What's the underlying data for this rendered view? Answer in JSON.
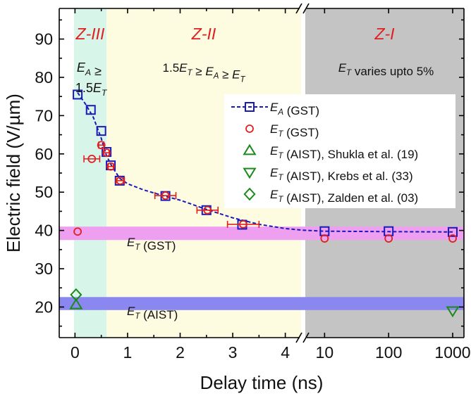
{
  "chart_data": {
    "type": "scatter",
    "xlabel": "Delay time (ns)",
    "ylabel": "Electric field (V/µm)",
    "ylim": [
      12,
      98
    ],
    "yticks": [
      "20",
      "30",
      "40",
      "50",
      "60",
      "70",
      "80",
      "90"
    ],
    "xaxis": {
      "linear_segment": {
        "range": [
          -0.3,
          4.3
        ],
        "ticks": [
          "0",
          "1",
          "2",
          "3",
          "4"
        ]
      },
      "log_segment": {
        "range": [
          5,
          1500
        ],
        "ticks": [
          "10",
          "100",
          "1000"
        ]
      }
    },
    "zones": [
      {
        "label": "Z-III",
        "from_ns": -0.02,
        "to_ns": 0.6,
        "color": "#d8f5ea",
        "condition_line1": "E_A ≥",
        "condition_line2": "1.5E_T"
      },
      {
        "label": "Z-II",
        "from_ns": 0.6,
        "to_ns": 4.3,
        "color": "#fdfbe0",
        "condition": "1.5E_T ≥ E_A ≥ E_T"
      },
      {
        "label": "Z-I",
        "from_ns": 5,
        "to_ns": 1500,
        "color": "#c4c4c4",
        "condition": "E_T varies upto 5%"
      }
    ],
    "bands": [
      {
        "label": "E_T (GST)",
        "y_from": 37.5,
        "y_to": 41,
        "color": "#ee9ff0"
      },
      {
        "label": "E_T (AIST)",
        "y_from": 19.2,
        "y_to": 22.6,
        "color": "#8a88f0"
      }
    ],
    "series": [
      {
        "name": "E_A (GST)",
        "marker": "square",
        "color": "#1a1ab8",
        "line": "dashed",
        "x": [
          0.05,
          0.3,
          0.5,
          0.6,
          0.68,
          0.85,
          1.72,
          2.5,
          3.18,
          10,
          100,
          1000
        ],
        "y": [
          75.5,
          71.5,
          66,
          60.5,
          57,
          53,
          49,
          45.3,
          41.5,
          39.8,
          39.8,
          39.6
        ]
      },
      {
        "name": "E_T (GST)",
        "marker": "circle",
        "color": "#e02020",
        "x": [
          0.05,
          0.32,
          0.5,
          0.6,
          0.68,
          0.86,
          1.72,
          2.52,
          3.2,
          10,
          100,
          1000
        ],
        "y": [
          39.7,
          58.7,
          62.3,
          60.3,
          56.7,
          53,
          49.1,
          45.3,
          41.6,
          37.9,
          37.9,
          37.9
        ],
        "xerr": [
          0,
          0.15,
          0.05,
          0.05,
          0.05,
          0.08,
          0.2,
          0.2,
          0.3,
          0,
          0,
          0
        ]
      },
      {
        "name": "E_T (AIST), Shukla et al. (19)",
        "marker": "triangle-up",
        "color": "#1a8a1a",
        "x": [
          0.02
        ],
        "y": [
          20.6
        ]
      },
      {
        "name": "E_T (AIST), Krebs et al. (33)",
        "marker": "triangle-down",
        "color": "#1a8a1a",
        "x": [
          1000
        ],
        "y": [
          19
        ]
      },
      {
        "name": "E_T (AIST), Zalden et al. (03)",
        "marker": "diamond",
        "color": "#1a8a1a",
        "x": [
          0.02
        ],
        "y": [
          23.2
        ]
      }
    ],
    "fit_curve": {
      "series": "E_A (GST)",
      "style": "dashed",
      "color": "#1a1ab8",
      "x": [
        0.05,
        0.2,
        0.35,
        0.5,
        0.6,
        0.7,
        0.85,
        1.0,
        1.3,
        1.7,
        2.0,
        2.5,
        3.0,
        3.5,
        4.0,
        4.3,
        10,
        100,
        1000
      ],
      "y": [
        76,
        73,
        69.5,
        64,
        59.5,
        56.8,
        53.6,
        52.2,
        50.6,
        49,
        47.9,
        45.5,
        43.3,
        41.6,
        40.5,
        40.1,
        39.8,
        39.7,
        39.6
      ]
    }
  }
}
